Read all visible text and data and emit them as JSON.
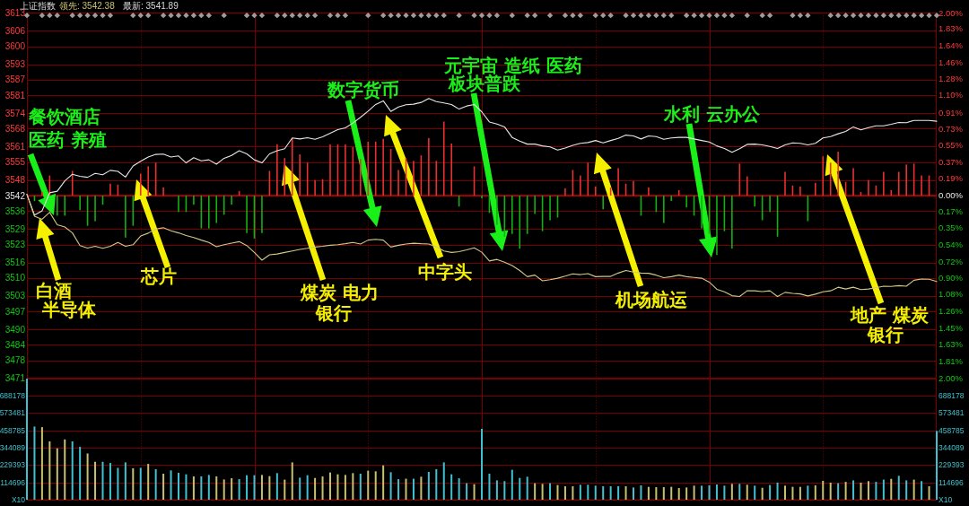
{
  "chart_data": [
    {
      "type": "line",
      "title": "上证指数",
      "annotations": [
        "餐饮酒店",
        "医药 养殖",
        "白酒",
        "半导体",
        "芯片",
        "煤炭 电力",
        "银行",
        "数字货币",
        "中字头",
        "元宇宙 造纸 医药",
        "板块普跌",
        "机场航运",
        "水利 云办公",
        "地产 煤炭",
        "银行",
        "领先: 3542.38",
        "最新: 3541.89"
      ],
      "categories": [
        null,
        null,
        null,
        null,
        null,
        null,
        null,
        null,
        null,
        null,
        null,
        null,
        null,
        null,
        null,
        null,
        null,
        null,
        null,
        null,
        null,
        null,
        null,
        null,
        null,
        null,
        null,
        null,
        null,
        null,
        null,
        null,
        null,
        null,
        null,
        null,
        null,
        null,
        null,
        null,
        null,
        null,
        null,
        null,
        null,
        null,
        null,
        null,
        null,
        null,
        null,
        null,
        null,
        null,
        null,
        null,
        null,
        null,
        null,
        null,
        null,
        null,
        null,
        null,
        null,
        null,
        null,
        null,
        null,
        null,
        null,
        null,
        null,
        null,
        null,
        null,
        null,
        null,
        null,
        null,
        null,
        null,
        null,
        null,
        null,
        null,
        null,
        null,
        null,
        null,
        null,
        null,
        null,
        null,
        null,
        null,
        null,
        null,
        null,
        null,
        null,
        null,
        null,
        null,
        null,
        null,
        null,
        null,
        null,
        null,
        null,
        null,
        null,
        null,
        null,
        null,
        null,
        null,
        null,
        null,
        null
      ],
      "series": [
        {
          "type": "bar",
          "axis": "y2",
          "color": "#e83030",
          "values": [
            null,
            null,
            0.04,
            0.22,
            null,
            null,
            0.27,
            null,
            null,
            null,
            null,
            0.13,
            0.12,
            null,
            null,
            0.24,
            0.32,
            0.36,
            0.09,
            null,
            null,
            null,
            null,
            null,
            null,
            null,
            null,
            null,
            0.05,
            null,
            null,
            null,
            0.27,
            0.56,
            0.41,
            0.63,
            0.45,
            0.36,
            0.17,
            0.18,
            0.56,
            0.56,
            0.56,
            0.53,
            0.4,
            0.59,
            0.59,
            0.62,
            0.51,
            0.28,
            0.41,
            0.38,
            0.44,
            0.63,
            0.38,
            0.81,
            0.57,
            null,
            null,
            0.32,
            null,
            null,
            null,
            null,
            null,
            null,
            null,
            null,
            null,
            null,
            null,
            0.08,
            0.28,
            0.22,
            0.36,
            0.1,
            null,
            0.09,
            0.3,
            0.13,
            0.16,
            null,
            0.09,
            null,
            null,
            null,
            0.06,
            null,
            null,
            null,
            null,
            null,
            null,
            null,
            0.35,
            0.21,
            null,
            null,
            null,
            null,
            0.26,
            0.11,
            0.1,
            null,
            0.14,
            0.43,
            0.36,
            0.48,
            0.15,
            0.3,
            0.04,
            0.17,
            0.11,
            0.26,
            0.06,
            0.26,
            0.34,
            0.35,
            0.22,
            0.22,
            null
          ]
        },
        {
          "type": "bar",
          "axis": "y2",
          "color": "#12b012",
          "values": [
            null,
            -0.06,
            null,
            null,
            -0.22,
            -0.22,
            null,
            -0.16,
            -0.33,
            -0.28,
            -0.1,
            null,
            null,
            -0.46,
            -0.33,
            null,
            null,
            null,
            null,
            null,
            -0.18,
            -0.18,
            -0.1,
            -0.36,
            -0.36,
            -0.3,
            -0.21,
            -0.1,
            null,
            -0.41,
            -0.47,
            -0.41,
            null,
            null,
            null,
            null,
            null,
            null,
            null,
            null,
            null,
            null,
            null,
            null,
            null,
            null,
            null,
            null,
            null,
            null,
            null,
            null,
            null,
            null,
            null,
            null,
            null,
            -0.12,
            null,
            null,
            -0.03,
            -0.19,
            -0.32,
            -0.45,
            -0.42,
            -0.58,
            -0.42,
            -0.2,
            -0.39,
            -0.27,
            -0.24,
            null,
            null,
            null,
            null,
            null,
            -0.15,
            null,
            null,
            null,
            null,
            -0.22,
            null,
            -0.18,
            -0.3,
            -0.06,
            null,
            -0.13,
            -0.22,
            -0.36,
            -0.42,
            -0.65,
            -0.39,
            -0.58,
            null,
            null,
            -0.12,
            -0.27,
            -0.18,
            -0.45,
            null,
            null,
            null,
            -0.28,
            null,
            null,
            null,
            null,
            null,
            null,
            null,
            null,
            null,
            null,
            null,
            null,
            null,
            null,
            null,
            null,
            null
          ]
        },
        {
          "color": "#e6e6e6",
          "values": [
            3542.5,
            3534.4,
            3536.1,
            3543.1,
            3543.7,
            3547.7,
            3550.3,
            3549.5,
            3549.1,
            3550.6,
            3550.1,
            3551.8,
            3551.4,
            3549.2,
            3553.5,
            3555.3,
            3557.0,
            3558.0,
            3558.1,
            3557.0,
            3557.4,
            3554.7,
            3556.7,
            3555.5,
            3555.9,
            3554.2,
            3556.5,
            3557.6,
            3559.4,
            3558.2,
            3555.9,
            3554.7,
            3558.2,
            3559.4,
            3560.2,
            3564.4,
            3564.0,
            3564.5,
            3563.9,
            3564.8,
            3566.2,
            3567.6,
            3568.3,
            3570.2,
            3572.4,
            3574.8,
            3577.4,
            3578.8,
            3574.7,
            3576.4,
            3577.3,
            3577.5,
            3578.2,
            3579.7,
            3578.5,
            3578.0,
            3577.4,
            3575.6,
            3576.8,
            3577.4,
            3574.5,
            3570.6,
            3569.8,
            3568.7,
            3564.6,
            3563.2,
            3562.0,
            3562.0,
            3561.3,
            3560.9,
            3559.7,
            3560.5,
            3561.5,
            3562.3,
            3562.6,
            3563.4,
            3562.5,
            3563.4,
            3564.2,
            3565.5,
            3565.2,
            3564.0,
            3565.2,
            3564.9,
            3563.9,
            3564.4,
            3564.6,
            3564.6,
            3564.0,
            3563.4,
            3562.8,
            3561.3,
            3560.3,
            3558.8,
            3560.2,
            3561.9,
            3562.0,
            3561.7,
            3561.1,
            3560.3,
            3561.7,
            3562.5,
            3562.3,
            3561.7,
            3562.3,
            3564.4,
            3564.9,
            3566.0,
            3566.9,
            3568.7,
            3567.5,
            3568.4,
            3569.1,
            3569.1,
            3569.7,
            3570.4,
            3570.3,
            3571.2,
            3571.2,
            3571.2,
            3570.9
          ]
        },
        {
          "color": "#d0c888",
          "values": [
            3542.5,
            3534.0,
            3532.8,
            3535.5,
            3530.7,
            3529.8,
            3527.5,
            3522.6,
            3521.6,
            3522.3,
            3521.5,
            3522.3,
            3523.8,
            3522.3,
            3522.9,
            3526.3,
            3527.4,
            3529.0,
            3529.5,
            3528.3,
            3527.5,
            3526.5,
            3525.7,
            3524.7,
            3523.8,
            3522.1,
            3522.9,
            3523.5,
            3524.1,
            3522.6,
            3519.9,
            3516.9,
            3519.0,
            3519.3,
            3519.9,
            3520.5,
            3521.1,
            3521.5,
            3522.0,
            3522.3,
            3522.7,
            3522.9,
            3523.3,
            3523.8,
            3523.2,
            3524.7,
            3525.0,
            3524.7,
            3522.0,
            3522.7,
            3523.2,
            3523.5,
            3523.3,
            3523.2,
            3522.1,
            3520.5,
            3519.9,
            3520.2,
            3520.9,
            3521.7,
            3520.0,
            3516.6,
            3517.2,
            3516.1,
            3514.8,
            3512.9,
            3510.5,
            3511.1,
            3508.9,
            3509.3,
            3509.9,
            3510.7,
            3511.6,
            3511.3,
            3511.7,
            3510.5,
            3510.6,
            3510.6,
            3511.9,
            3512.9,
            3512.3,
            3511.9,
            3511.8,
            3511.1,
            3510.1,
            3510.5,
            3511.1,
            3510.5,
            3510.2,
            3509.9,
            3508.4,
            3505.6,
            3504.6,
            3503.1,
            3502.8,
            3505.0,
            3505.0,
            3504.7,
            3505.0,
            3502.8,
            3504.4,
            3504.0,
            3503.8,
            3503.0,
            3503.7,
            3504.6,
            3505.0,
            3506.4,
            3505.7,
            3506.4,
            3505.5,
            3505.7,
            3506.2,
            3506.8,
            3506.7,
            3507.0,
            3506.8,
            3509.1,
            3509.6,
            3509.5,
            3508.6
          ]
        },
        {
          "type": "scatter",
          "marker": "diamond",
          "color": "#9c9c9c",
          "values": [
            3612,
            null,
            3612,
            3612,
            3612,
            null,
            3612,
            3612,
            3612,
            3612,
            3612,
            3612,
            null,
            null,
            3612,
            3612,
            3612,
            null,
            3612,
            3612,
            3612,
            3612,
            3612,
            3612,
            3612,
            null,
            3612,
            null,
            null,
            3612,
            3612,
            3612,
            null,
            3612,
            3612,
            3612,
            3612,
            3612,
            3612,
            null,
            3612,
            3612,
            3612,
            null,
            null,
            3612,
            null,
            3612,
            3612,
            3612,
            3612,
            3612,
            3612,
            3612,
            3612,
            3612,
            null,
            3612,
            null,
            3612,
            3612,
            3612,
            3612,
            null,
            3612,
            null,
            3612,
            3612,
            null,
            3612,
            null,
            3612,
            3612,
            3612,
            null,
            3612,
            3612,
            3612,
            null,
            3612,
            3612,
            3612,
            3612,
            3612,
            3612,
            3612,
            null,
            3612,
            3612,
            3612,
            3612,
            3612,
            3612,
            3612,
            null,
            3612,
            null,
            3612,
            3612,
            null,
            null,
            3612,
            3612,
            3612,
            null,
            null,
            3612,
            3612,
            3612,
            3612,
            3612,
            3612,
            3612,
            3612,
            3612,
            3612,
            3612,
            3612,
            3612,
            3612,
            3612
          ]
        }
      ],
      "ylim": [
        3471,
        3613
      ],
      "yticks": [
        3471,
        3478,
        3484,
        3490,
        3497,
        3503,
        3510,
        3516,
        3523,
        3529,
        3536,
        3542,
        3548,
        3555,
        3561,
        3568,
        3574,
        3581,
        3587,
        3593,
        3600,
        3606,
        3613
      ],
      "y2lim": [
        -2,
        2
      ],
      "y2ticks": [
        {
          "value": -2.0,
          "label": "2.00%"
        },
        {
          "value": -1.81,
          "label": "1.81%"
        },
        {
          "value": -1.63,
          "label": "1.63%"
        },
        {
          "value": -1.45,
          "label": "1.45%"
        },
        {
          "value": -1.26,
          "label": "1.26%"
        },
        {
          "value": -1.08,
          "label": "1.08%"
        },
        {
          "value": -0.9,
          "label": "0.90%"
        },
        {
          "value": -0.72,
          "label": "0.72%"
        },
        {
          "value": -0.54,
          "label": "0.54%"
        },
        {
          "value": -0.35,
          "label": "0.35%"
        },
        {
          "value": -0.17,
          "label": "0.17%"
        },
        {
          "value": 0,
          "label": "0.00%"
        },
        {
          "value": 0.19,
          "label": "0.19%"
        },
        {
          "value": 0.37,
          "label": "0.37%"
        },
        {
          "value": 0.55,
          "label": "0.55%"
        },
        {
          "value": 0.73,
          "label": "0.73%"
        },
        {
          "value": 0.91,
          "label": "0.91%"
        },
        {
          "value": 1.1,
          "label": "1.10%"
        },
        {
          "value": 1.28,
          "label": "1.28%"
        },
        {
          "value": 1.46,
          "label": "1.46%"
        },
        {
          "value": 1.64,
          "label": "1.64%"
        },
        {
          "value": 1.83,
          "label": "1.83%"
        },
        {
          "value": 2.0,
          "label": "2.00%"
        }
      ],
      "grid": true,
      "ref_lines": [
        {
          "axis": "y2",
          "value": 0,
          "color": "#c00000"
        }
      ]
    },
    {
      "type": "bar",
      "categories": [
        null,
        null,
        null,
        null,
        null,
        null,
        null,
        null,
        null,
        null,
        null,
        null,
        null,
        null,
        null,
        null,
        null,
        null,
        null,
        null,
        null,
        null,
        null,
        null,
        null,
        null,
        null,
        null,
        null,
        null,
        null,
        null,
        null,
        null,
        null,
        null,
        null,
        null,
        null,
        null,
        null,
        null,
        null,
        null,
        null,
        null,
        null,
        null,
        null,
        null,
        null,
        null,
        null,
        null,
        null,
        null,
        null,
        null,
        null,
        null,
        null,
        null,
        null,
        null,
        null,
        null,
        null,
        null,
        null,
        null,
        null,
        null,
        null,
        null,
        null,
        null,
        null,
        null,
        null,
        null,
        null,
        null,
        null,
        null,
        null,
        null,
        null,
        null,
        null,
        null,
        null,
        null,
        null,
        null,
        null,
        null,
        null,
        null,
        null,
        null,
        null,
        null,
        null,
        null,
        null,
        null,
        null,
        null,
        null,
        null,
        null,
        null,
        null,
        null,
        null,
        null,
        null,
        null,
        null,
        null,
        null
      ],
      "values": [
        801000,
        484000,
        480000,
        386000,
        340000,
        399000,
        386000,
        350000,
        306000,
        251000,
        251000,
        243000,
        211000,
        247000,
        208000,
        211000,
        237000,
        202000,
        172000,
        194000,
        178000,
        168000,
        154000,
        154000,
        164000,
        154000,
        134000,
        142000,
        136000,
        162000,
        162000,
        164000,
        156000,
        176000,
        133000,
        247000,
        146000,
        162000,
        144000,
        154000,
        180000,
        168000,
        164000,
        176000,
        172000,
        192000,
        188000,
        227000,
        182000,
        136000,
        139000,
        139000,
        152000,
        184000,
        202000,
        247000,
        168000,
        142000,
        109000,
        103000,
        469000,
        172000,
        128000,
        123000,
        198000,
        144000,
        152000,
        109000,
        105000,
        109000,
        97000,
        89000,
        89000,
        99000,
        99000,
        93000,
        89000,
        89000,
        89000,
        89000,
        81000,
        95000,
        85000,
        83000,
        83000,
        85000,
        77000,
        81000,
        93000,
        93000,
        95000,
        101000,
        93000,
        105000,
        105000,
        99000,
        93000,
        79000,
        97000,
        113000,
        93000,
        85000,
        85000,
        93000,
        95000,
        125000,
        113000,
        109000,
        118000,
        128000,
        113000,
        123000,
        118000,
        133000,
        138000,
        158000,
        128000,
        133000,
        123000,
        89000,
        455000
      ],
      "colors": [
        "#40c0d0",
        "#40c0d0",
        "#c8c070",
        "#c8c070",
        "#c8c070",
        "#c8c070",
        "#40c0d0",
        "#40c0d0",
        "#c8c070",
        "#c8c070",
        "#40c0d0",
        "#40c0d0",
        "#40c0d0",
        "#40c0d0",
        "#c8c070",
        "#40c0d0",
        "#c8c070",
        "#40c0d0",
        "#c8c070",
        "#40c0d0",
        "#40c0d0",
        "#40c0d0",
        "#c8c070",
        "#40c0d0",
        "#40c0d0",
        "#c8c070",
        "#c8c070",
        "#c8c070",
        "#40c0d0",
        "#40c0d0",
        "#40c0d0",
        "#c8c070",
        "#c8c070",
        "#40c0d0",
        "#c8c070",
        "#c8c070",
        "#40c0d0",
        "#40c0d0",
        "#c8c070",
        "#c8c070",
        "#c8c070",
        "#c8c070",
        "#c8c070",
        "#c8c070",
        "#40c0d0",
        "#c8c070",
        "#c8c070",
        "#c8c070",
        "#40c0d0",
        "#40c0d0",
        "#c8c070",
        "#40c0d0",
        "#c8c070",
        "#40c0d0",
        "#40c0d0",
        "#40c0d0",
        "#40c0d0",
        "#40c0d0",
        "#40c0d0",
        "#c8c070",
        "#40c0d0",
        "#40c0d0",
        "#40c0d0",
        "#40c0d0",
        "#40c0d0",
        "#40c0d0",
        "#40c0d0",
        "#c8c070",
        "#c8c070",
        "#40c0d0",
        "#c8c070",
        "#c8c070",
        "#c8c070",
        "#40c0d0",
        "#40c0d0",
        "#40c0d0",
        "#40c0d0",
        "#40c0d0",
        "#40c0d0",
        "#c8c070",
        "#40c0d0",
        "#40c0d0",
        "#c8c070",
        "#c8c070",
        "#c8c070",
        "#c8c070",
        "#c8c070",
        "#c8c070",
        "#c8c070",
        "#40c0d0",
        "#40c0d0",
        "#40c0d0",
        "#40c0d0",
        "#c8c070",
        "#40c0d0",
        "#c8c070",
        "#40c0d0",
        "#c8c070",
        "#40c0d0",
        "#40c0d0",
        "#c8c070",
        "#c8c070",
        "#c8c070",
        "#40c0d0",
        "#c8c070",
        "#c8c070",
        "#c8c070",
        "#40c0d0",
        "#c8c070",
        "#40c0d0",
        "#c8c070",
        "#c8c070",
        "#40c0d0",
        "#40c0d0",
        "#c8c070",
        "#40c0d0",
        "#40c0d0",
        "#c8c070",
        "#40c0d0",
        "#c8c070",
        "#40c0d0"
      ],
      "ylim": [
        0,
        802874
      ],
      "yticks": [
        {
          "value": 0,
          "label": "X10"
        },
        114696,
        229393,
        344089,
        458785,
        573481,
        688178
      ],
      "y2lim": [
        0,
        802874
      ],
      "y2ticks": [
        {
          "value": 0,
          "label": "X10"
        },
        114696,
        229393,
        344089,
        458785,
        573481,
        688178
      ],
      "grid": true
    }
  ]
}
